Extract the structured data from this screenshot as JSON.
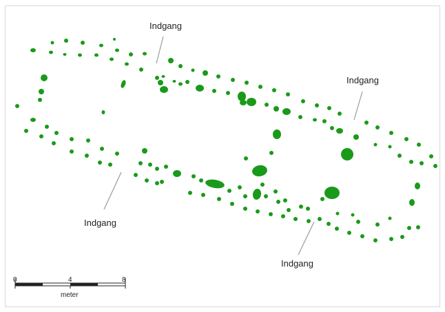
{
  "map": {
    "entrance_label": "Indgang",
    "feature_color": "#1a9a1a"
  },
  "scale_bar": {
    "ticks": [
      "0",
      "4",
      "8"
    ],
    "unit": "meter"
  }
}
